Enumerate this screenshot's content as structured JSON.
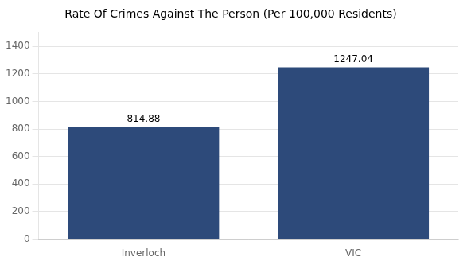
{
  "chart_data": {
    "type": "bar",
    "title": "Rate Of Crimes Against The Person (Per 100,000 Residents)",
    "categories": [
      "Inverloch",
      "VIC"
    ],
    "values": [
      814.88,
      1247.04
    ],
    "color": "#2d4a7a",
    "ylim": [
      0,
      1500
    ],
    "yticks": [
      0,
      200,
      400,
      600,
      800,
      1000,
      1200,
      1400
    ],
    "grid": true,
    "data_labels": true
  }
}
